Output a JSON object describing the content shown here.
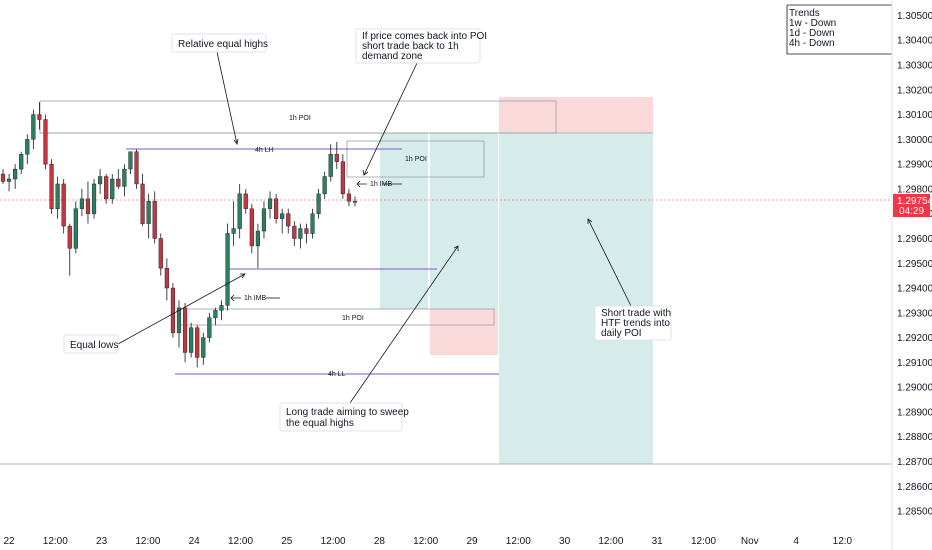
{
  "chart_data": {
    "type": "candlestick",
    "x_tick_labels": [
      "22",
      "12:00",
      "23",
      "12:00",
      "24",
      "12:00",
      "25",
      "12:00",
      "28",
      "12:00",
      "29",
      "12:00",
      "30",
      "12:00",
      "31",
      "12:00",
      "Nov",
      "4",
      "12:0"
    ],
    "y_tick_labels": [
      "1.30500",
      "1.30400",
      "1.30300",
      "1.30200",
      "1.30100",
      "1.30000",
      "1.29900",
      "1.29800",
      "1.29700",
      "1.29600",
      "1.29500",
      "1.29400",
      "1.29300",
      "1.29200",
      "1.29100",
      "1.29000",
      "1.28900",
      "1.28800",
      "1.28700",
      "1.28600",
      "1.28500"
    ],
    "ylim": [
      1.2846,
      1.3053
    ],
    "current_price": {
      "price": "1.29754",
      "countdown": "04:29",
      "value": 1.29754
    },
    "candles": [
      [
        1.2986,
        1.2988,
        1.2982,
        1.2983
      ],
      [
        1.2983,
        1.2986,
        1.2979,
        1.2984
      ],
      [
        1.2984,
        1.299,
        1.298,
        1.2988
      ],
      [
        1.2988,
        1.2995,
        1.2986,
        1.2994
      ],
      [
        1.2994,
        1.3002,
        1.299,
        1.3
      ],
      [
        1.3,
        1.3012,
        1.2996,
        1.301
      ],
      [
        1.301,
        1.3015,
        1.3004,
        1.3008
      ],
      [
        1.3008,
        1.301,
        1.2988,
        1.299
      ],
      [
        1.299,
        1.2992,
        1.297,
        1.2972
      ],
      [
        1.2972,
        1.2985,
        1.2968,
        1.2982
      ],
      [
        1.2982,
        1.2984,
        1.2962,
        1.2965
      ],
      [
        1.2965,
        1.2966,
        1.2945,
        1.2956
      ],
      [
        1.2956,
        1.2975,
        1.2954,
        1.2972
      ],
      [
        1.2972,
        1.298,
        1.2969,
        1.2976
      ],
      [
        1.2976,
        1.2983,
        1.2966,
        1.297
      ],
      [
        1.297,
        1.2984,
        1.2968,
        1.2982
      ],
      [
        1.2982,
        1.2988,
        1.2978,
        1.2985
      ],
      [
        1.2985,
        1.2986,
        1.2974,
        1.2976
      ],
      [
        1.2976,
        1.2986,
        1.2974,
        1.2984
      ],
      [
        1.2984,
        1.2988,
        1.298,
        1.2981
      ],
      [
        1.2981,
        1.299,
        1.2977,
        1.2988
      ],
      [
        1.2988,
        1.2995,
        1.2986,
        1.2995
      ],
      [
        1.2995,
        1.2996,
        1.298,
        1.2982
      ],
      [
        1.2982,
        1.2986,
        1.2965,
        1.2966
      ],
      [
        1.2966,
        1.2978,
        1.296,
        1.2975
      ],
      [
        1.2975,
        1.2979,
        1.2958,
        1.296
      ],
      [
        1.296,
        1.2962,
        1.2945,
        1.2948
      ],
      [
        1.2948,
        1.2952,
        1.2935,
        1.294
      ],
      [
        1.294,
        1.2942,
        1.292,
        1.2922
      ],
      [
        1.2922,
        1.2935,
        1.2916,
        1.2932
      ],
      [
        1.2932,
        1.2934,
        1.291,
        1.2914
      ],
      [
        1.2914,
        1.2926,
        1.2912,
        1.2924
      ],
      [
        1.2924,
        1.2925,
        1.2908,
        1.2912
      ],
      [
        1.2912,
        1.2922,
        1.2909,
        1.292
      ],
      [
        1.292,
        1.293,
        1.2918,
        1.2928
      ],
      [
        1.2928,
        1.2932,
        1.2925,
        1.2931
      ],
      [
        1.2931,
        1.2935,
        1.2927,
        1.2933
      ],
      [
        1.2933,
        1.2966,
        1.2931,
        1.2962
      ],
      [
        1.2962,
        1.2975,
        1.2957,
        1.2964
      ],
      [
        1.2964,
        1.2982,
        1.296,
        1.2978
      ],
      [
        1.2978,
        1.298,
        1.297,
        1.2972
      ],
      [
        1.2972,
        1.2974,
        1.2954,
        1.2957
      ],
      [
        1.2957,
        1.2966,
        1.2948,
        1.2963
      ],
      [
        1.2963,
        1.2975,
        1.296,
        1.2972
      ],
      [
        1.2972,
        1.2979,
        1.2968,
        1.2976
      ],
      [
        1.2976,
        1.2978,
        1.2966,
        1.2968
      ],
      [
        1.2968,
        1.2972,
        1.2962,
        1.297
      ],
      [
        1.297,
        1.2972,
        1.2962,
        1.2965
      ],
      [
        1.2965,
        1.2967,
        1.2957,
        1.296
      ],
      [
        1.296,
        1.2966,
        1.2956,
        1.2964
      ],
      [
        1.2964,
        1.2966,
        1.2958,
        1.2962
      ],
      [
        1.2962,
        1.2972,
        1.296,
        1.297
      ],
      [
        1.297,
        1.298,
        1.2968,
        1.2978
      ],
      [
        1.2978,
        1.2987,
        1.2976,
        1.2985
      ],
      [
        1.2985,
        1.2998,
        1.2983,
        1.2994
      ],
      [
        1.2994,
        1.2999,
        1.2988,
        1.2991
      ],
      [
        1.2991,
        1.2994,
        1.2976,
        1.2978
      ],
      [
        1.2978,
        1.298,
        1.2973,
        1.2975
      ],
      [
        1.2975,
        1.2977,
        1.2973,
        1.2975
      ]
    ]
  },
  "y_axis": {
    "border_color": "#e0e3eb"
  },
  "colors": {
    "up": "#2e7d5b",
    "down": "#c2373f",
    "wick": "#131722",
    "ray": "#7e57c2",
    "zone_red": "#f7c7c7",
    "zone_teal": "#c5e4de",
    "price_line": "#f23645"
  },
  "trends_box": {
    "title": "Trends",
    "lines": [
      "1w - Down",
      "1d - Down",
      "4h - Down"
    ]
  },
  "annotations": {
    "relative_equal_highs": "Relative equal highs",
    "if_price_line1": "If price comes back into POI",
    "if_price_line2": "short trade back to 1h",
    "if_price_line3": "demand zone",
    "equal_lows": "Equal lows",
    "long_trade_line1": "Long trade aiming to sweep",
    "long_trade_line2": "the equal highs",
    "short_trade_line1": "Short trade with",
    "short_trade_line2": "HTF trends into",
    "short_trade_line3": "daily POI"
  },
  "labels": {
    "poi_1h_top": "1h POI",
    "poi_1h_right": "1h POI",
    "poi_1h_lower": "1h POI",
    "lh_4h": "4h LH",
    "ll_4h": "4h LL",
    "imb_1h_upper": "1h IMB",
    "imb_1h_lower": "1h IMB"
  }
}
